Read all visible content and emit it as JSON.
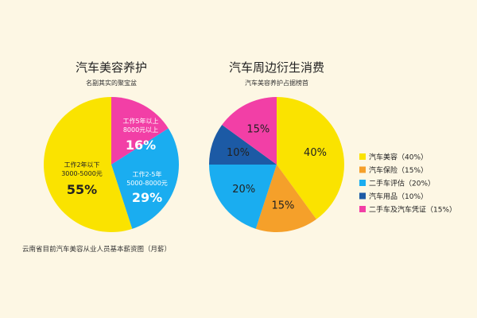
{
  "chart_data": [
    {
      "type": "pie",
      "title": "汽车美容养护",
      "subtitle": "名副其实的聚宝盆",
      "categories": [
        "工作2年以下 3000-5000元",
        "工作2-5年 5000-8000元",
        "工作5年以上 8000元以上"
      ],
      "values": [
        55,
        29,
        16
      ],
      "slices": [
        {
          "lines": [
            "工作2年以下",
            "3000-5000元"
          ],
          "pct": "55%",
          "value": 55,
          "color": "#fae300",
          "text_color": "#222222",
          "pct_color": "#222222"
        },
        {
          "lines": [
            "工作2-5年",
            "5000-8000元"
          ],
          "pct": "29%",
          "value": 29,
          "color": "#1aadf0",
          "text_color": "#ffffff",
          "pct_color": "#ffffff"
        },
        {
          "lines": [
            "工作5年以上",
            "8000元以上"
          ],
          "pct": "16%",
          "value": 16,
          "color": "#f23fa6",
          "text_color": "#ffffff",
          "pct_color": "#ffffff"
        }
      ],
      "footnote": "云南省目前汽车美容从业人员基本薪资图（月薪）"
    },
    {
      "type": "pie",
      "title": "汽车周边衍生消费",
      "subtitle": "汽车美容养护占据榜首",
      "categories": [
        "汽车美容",
        "汽车保险",
        "二手车评估",
        "汽车用品",
        "二手车及汽车凭证"
      ],
      "values": [
        40,
        15,
        20,
        10,
        15
      ],
      "slices": [
        {
          "name": "汽车美容",
          "pct": "40%",
          "value": 40,
          "color": "#fae300",
          "legend": "汽车美容（40%）"
        },
        {
          "name": "汽车保险",
          "pct": "15%",
          "value": 15,
          "color": "#f5a02a",
          "legend": "汽车保险（15%）"
        },
        {
          "name": "二手车评估",
          "pct": "20%",
          "value": 20,
          "color": "#1aadf0",
          "legend": "二手车评估（20%）"
        },
        {
          "name": "汽车用品",
          "pct": "10%",
          "value": 10,
          "color": "#1c5aa5",
          "legend": "汽车用品（10%）"
        },
        {
          "name": "二手车及汽车凭证",
          "pct": "15%",
          "value": 15,
          "color": "#f23fa6",
          "legend": "二手车及汽车凭证（15%）"
        }
      ],
      "legend_position": "right"
    }
  ]
}
